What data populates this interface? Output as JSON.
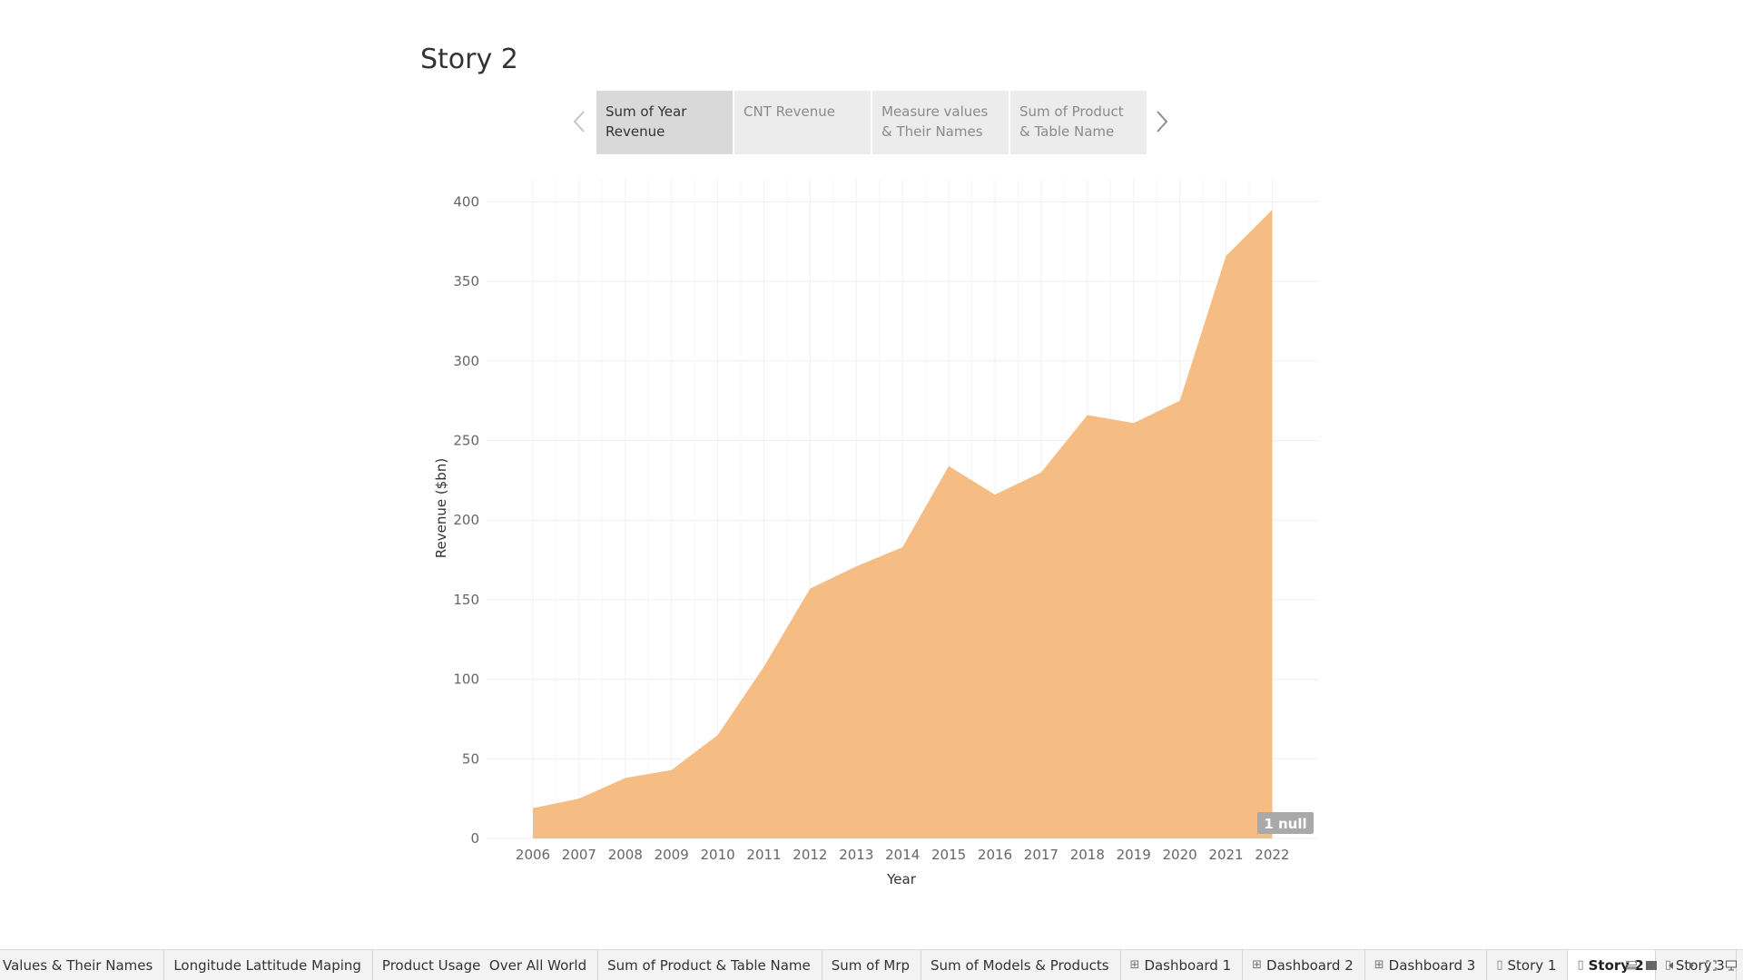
{
  "story": {
    "title": "Story 2",
    "points": [
      {
        "label": "Sum of Year Revenue",
        "active": true
      },
      {
        "label": "CNT Revenue",
        "active": false
      },
      {
        "label": "Measure values & Their Names",
        "active": false
      },
      {
        "label": "Sum of Product & Table Name",
        "active": false
      }
    ],
    "nav_prev_icon": "chevron-left-icon",
    "nav_next_icon": "chevron-right-icon"
  },
  "chart_data": {
    "type": "area",
    "x": [
      "2006",
      "2007",
      "2008",
      "2009",
      "2010",
      "2011",
      "2012",
      "2013",
      "2014",
      "2015",
      "2016",
      "2017",
      "2018",
      "2019",
      "2020",
      "2021",
      "2022"
    ],
    "values": [
      19,
      25,
      38,
      43,
      65,
      108,
      157,
      171,
      183,
      234,
      216,
      230,
      266,
      261,
      275,
      366,
      395
    ],
    "xlabel": "Year",
    "ylabel": "Revenue ($bn)",
    "ylim": [
      0,
      415
    ],
    "yticks": [
      "0",
      "50",
      "100",
      "150",
      "200",
      "250",
      "300",
      "350",
      "400"
    ],
    "ytick_values": [
      0,
      50,
      100,
      150,
      200,
      250,
      300,
      350,
      400
    ],
    "grid": true,
    "color": "#f4b87c",
    "null_indicator": "1 null"
  },
  "tabs": [
    {
      "label": "Values & Their Names",
      "icon": "",
      "active": false
    },
    {
      "label": "Longitude Lattitude Maping",
      "icon": "",
      "active": false
    },
    {
      "label": "Product Usage  Over All World",
      "icon": "",
      "active": false
    },
    {
      "label": "Sum of Product & Table Name",
      "icon": "",
      "active": false
    },
    {
      "label": "Sum of Mrp",
      "icon": "",
      "active": false
    },
    {
      "label": "Sum of Models & Products",
      "icon": "",
      "active": false
    },
    {
      "label": "Dashboard 1",
      "icon": "dashboard-icon",
      "active": false
    },
    {
      "label": "Dashboard 2",
      "icon": "dashboard-icon",
      "active": false
    },
    {
      "label": "Dashboard 3",
      "icon": "dashboard-icon",
      "active": false
    },
    {
      "label": "Story 1",
      "icon": "story-icon",
      "active": false
    },
    {
      "label": "Story 2",
      "icon": "story-icon",
      "active": true
    },
    {
      "label": "Story 3",
      "icon": "story-icon",
      "active": false
    }
  ],
  "controls": [
    "show-filmstrip-icon",
    "show-tabs-icon",
    "previous-sheet-icon",
    "next-sheet-icon",
    "presentation-mode-icon",
    "present-icon"
  ]
}
